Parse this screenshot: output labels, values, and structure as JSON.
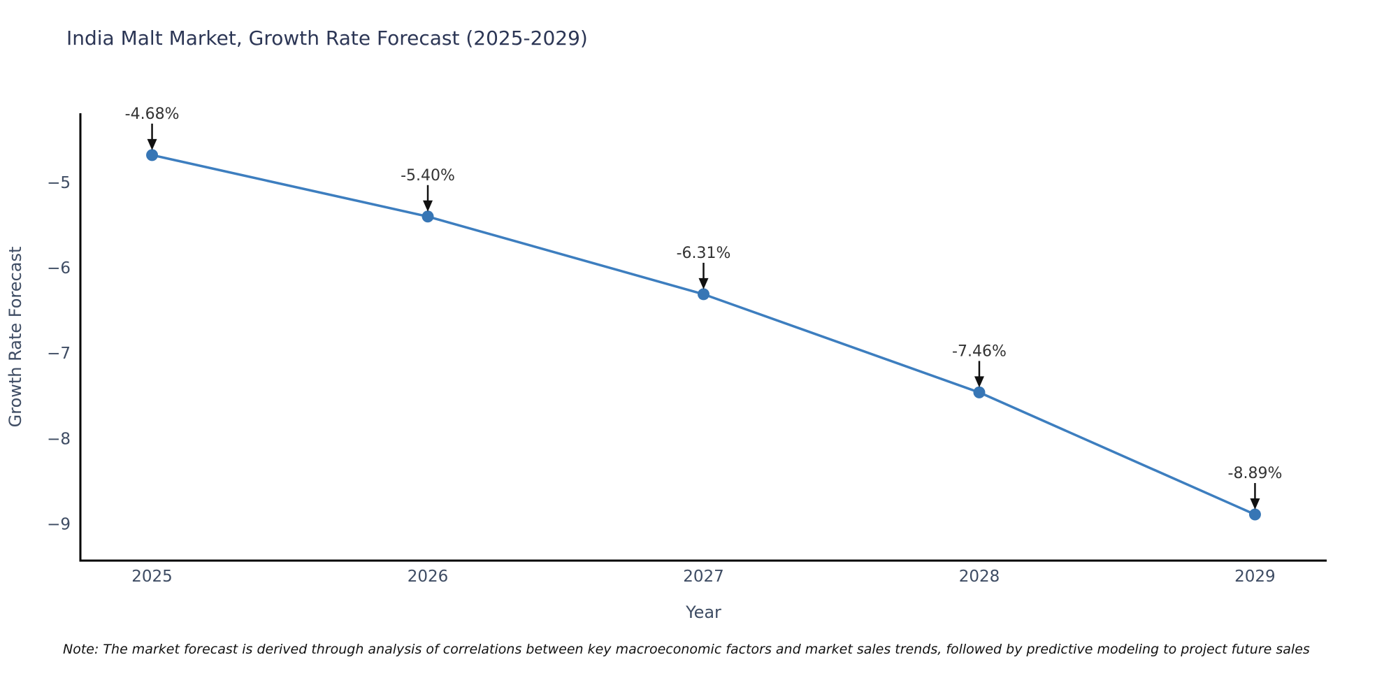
{
  "chart_data": {
    "type": "line",
    "title": "India Malt Market, Growth Rate Forecast (2025-2029)",
    "xlabel": "Year",
    "ylabel": "Growth Rate Forecast",
    "x": [
      2025,
      2026,
      2027,
      2028,
      2029
    ],
    "values": [
      -4.68,
      -5.4,
      -6.31,
      -7.46,
      -8.89
    ],
    "point_labels": [
      "-4.68%",
      "-5.40%",
      "-6.31%",
      "-7.46%",
      "-8.89%"
    ],
    "xtick_labels": [
      "2025",
      "2026",
      "2027",
      "2028",
      "2029"
    ],
    "yticks": [
      -5,
      -6,
      -7,
      -8,
      -9
    ],
    "ytick_labels": [
      "−5",
      "−6",
      "−7",
      "−8",
      "−9"
    ],
    "xlim": [
      2024.74,
      2029.26
    ],
    "ylim": [
      -9.43,
      -4.19
    ],
    "grid": false,
    "legend": null,
    "colors": {
      "line": "#3d7ebf",
      "marker": "#3776b5",
      "spine": "#000000",
      "annotation_text": "#333333",
      "arrow": "#111111",
      "title": "#2c3655",
      "axis_text": "#3e4c63",
      "note_text": "#111111"
    },
    "note": "Note: The market forecast is derived through analysis of correlations between key macroeconomic factors and market sales trends, followed by predictive modeling to project future sales"
  }
}
